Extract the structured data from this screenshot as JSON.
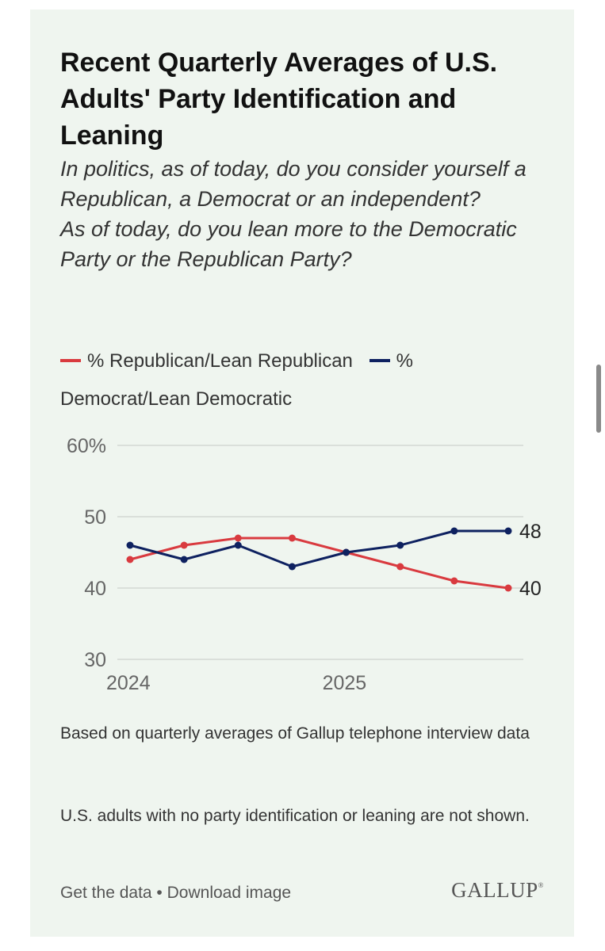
{
  "chart_data": {
    "type": "line",
    "title": "Recent Quarterly Averages of U.S. Adults' Party Identification and Leaning",
    "subtitle": [
      "In politics, as of today, do you consider yourself a Republican, a Democrat or an independent?",
      "As of today, do you lean more to the Democratic Party or the Republican Party?"
    ],
    "x": [
      "2024 Q1",
      "2024 Q2",
      "2024 Q3",
      "2024 Q4",
      "2025 Q1",
      "2025 Q2",
      "2025 Q3",
      "2025 Q4"
    ],
    "x_tick_labels": [
      "2024",
      "2025"
    ],
    "y_tick_labels": [
      "60%",
      "50",
      "40",
      "30"
    ],
    "ylim": [
      30,
      60
    ],
    "y_ticks": [
      30,
      40,
      50,
      60
    ],
    "grid": true,
    "legend_position": "top",
    "series": [
      {
        "name": "% Republican/Lean Republican",
        "color": "#d93a3f",
        "values": [
          44,
          46,
          47,
          47,
          45,
          43,
          41,
          40
        ],
        "end_label": "40"
      },
      {
        "name": "% Democrat/Lean Democratic",
        "color": "#0e2160",
        "values": [
          46,
          44,
          46,
          43,
          45,
          46,
          48,
          48
        ],
        "end_label": "48"
      }
    ]
  },
  "notes": {
    "method": "Based on quarterly averages of Gallup telephone interview data",
    "exclusion": "U.S. adults with no party identification or leaning are not shown."
  },
  "footer": {
    "get_data": "Get the data",
    "separator": " • ",
    "download": "Download image",
    "logo_text": "GALLUP",
    "logo_mark": "®"
  }
}
